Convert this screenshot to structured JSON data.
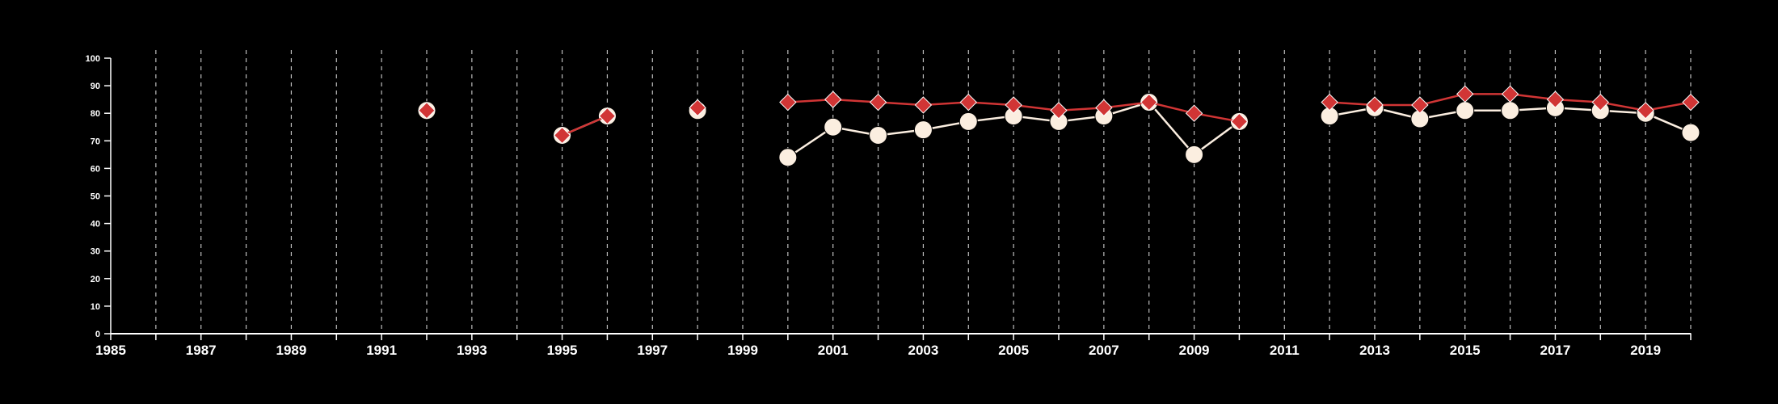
{
  "chart_data": {
    "type": "line",
    "title": "",
    "xlabel": "",
    "ylabel": "",
    "xlim": [
      1985,
      2020
    ],
    "ylim": [
      0,
      100
    ],
    "x_ticks": [
      1985,
      1987,
      1989,
      1991,
      1993,
      1995,
      1997,
      1999,
      2001,
      2003,
      2005,
      2007,
      2009,
      2011,
      2013,
      2015,
      2017,
      2019
    ],
    "y_ticks": [
      0,
      10,
      20,
      30,
      40,
      50,
      60,
      70,
      80,
      90,
      100
    ],
    "grid": "vertical dashed lines at every year",
    "legend": "none",
    "series": [
      {
        "color": "#fbeee0",
        "marker": "circle",
        "points": [
          [
            1992,
            81
          ],
          [
            1995,
            72
          ],
          [
            1996,
            79
          ],
          [
            1998,
            81
          ],
          [
            2000,
            64
          ],
          [
            2001,
            75
          ],
          [
            2002,
            72
          ],
          [
            2003,
            74
          ],
          [
            2004,
            77
          ],
          [
            2005,
            79
          ],
          [
            2006,
            77
          ],
          [
            2007,
            79
          ],
          [
            2008,
            84
          ],
          [
            2009,
            65
          ],
          [
            2010,
            77
          ],
          [
            2012,
            79
          ],
          [
            2013,
            82
          ],
          [
            2014,
            78
          ],
          [
            2015,
            81
          ],
          [
            2016,
            81
          ],
          [
            2017,
            82
          ],
          [
            2018,
            81
          ],
          [
            2019,
            80
          ],
          [
            2020,
            73
          ]
        ]
      },
      {
        "color": "#d13535",
        "marker": "diamond",
        "points": [
          [
            1992,
            81
          ],
          [
            1995,
            72
          ],
          [
            1996,
            79
          ],
          [
            1998,
            82
          ],
          [
            2000,
            84
          ],
          [
            2001,
            85
          ],
          [
            2002,
            84
          ],
          [
            2003,
            83
          ],
          [
            2004,
            84
          ],
          [
            2005,
            83
          ],
          [
            2006,
            81
          ],
          [
            2007,
            82
          ],
          [
            2008,
            84
          ],
          [
            2009,
            80
          ],
          [
            2010,
            77
          ],
          [
            2012,
            84
          ],
          [
            2013,
            83
          ],
          [
            2014,
            83
          ],
          [
            2015,
            87
          ],
          [
            2016,
            87
          ],
          [
            2017,
            85
          ],
          [
            2018,
            84
          ],
          [
            2019,
            81
          ],
          [
            2020,
            84
          ]
        ]
      }
    ]
  }
}
